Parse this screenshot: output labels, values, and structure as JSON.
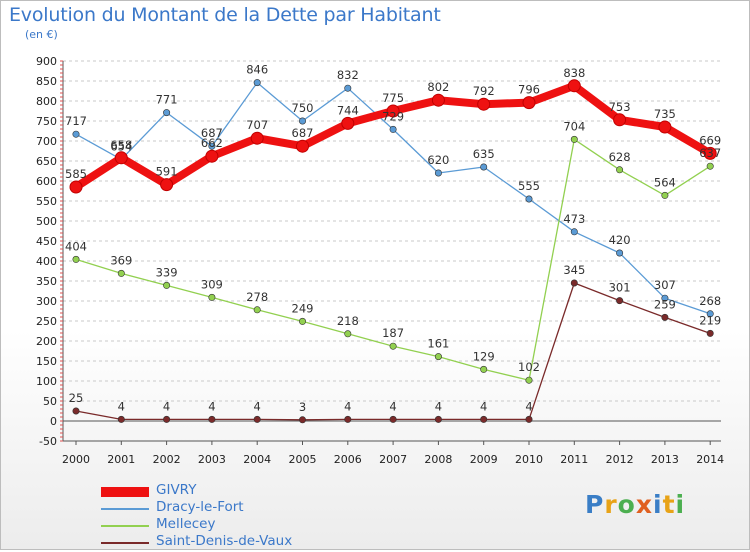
{
  "title": "Evolution du Montant de la Dette par Habitant",
  "unit": "(en €)",
  "logo_text": "Proxiti",
  "chart_data": {
    "type": "line",
    "title": "Evolution du Montant de la Dette par Habitant",
    "ylabel": "(en €)",
    "x": [
      "2000",
      "2001",
      "2002",
      "2003",
      "2004",
      "2005",
      "2006",
      "2007",
      "2008",
      "2009",
      "2010",
      "2011",
      "2012",
      "2013",
      "2014"
    ],
    "ylim": [
      -50,
      900
    ],
    "yticks": [
      -50,
      0,
      50,
      100,
      150,
      200,
      250,
      300,
      350,
      400,
      450,
      500,
      550,
      600,
      650,
      700,
      750,
      800,
      850,
      900
    ],
    "grid": "horizontal dashed",
    "legend_position": "bottom-left",
    "series": [
      {
        "name": "GIVRY",
        "color": "#ee1111",
        "values": [
          585,
          658,
          591,
          662,
          707,
          687,
          744,
          775,
          802,
          792,
          796,
          838,
          753,
          735,
          669
        ]
      },
      {
        "name": "Dracy-le-Fort",
        "color": "#5b9bd5",
        "values": [
          717,
          654,
          771,
          687,
          846,
          750,
          832,
          729,
          620,
          635,
          555,
          473,
          420,
          307,
          268
        ]
      },
      {
        "name": "Mellecey",
        "color": "#92d050",
        "values": [
          404,
          369,
          339,
          309,
          278,
          249,
          218,
          187,
          161,
          129,
          102,
          704,
          628,
          564,
          637
        ]
      },
      {
        "name": "Saint-Denis-de-Vaux",
        "color": "#7a2a2a",
        "values": [
          25,
          4,
          4,
          4,
          4,
          3,
          4,
          4,
          4,
          4,
          4,
          345,
          301,
          259,
          219
        ]
      }
    ]
  }
}
